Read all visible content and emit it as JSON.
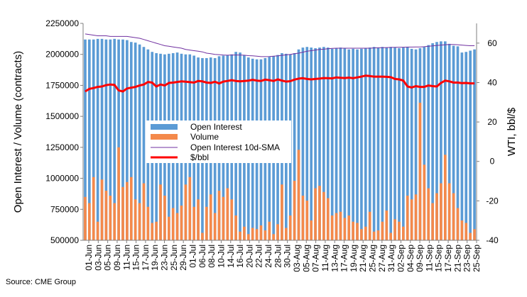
{
  "chart_data": {
    "type": "bar",
    "ylabel": "Open Interest / Volume (contracts)",
    "y2label": "WTI, bbl/$",
    "ylim": [
      500000,
      2250000
    ],
    "y2lim": [
      -40,
      70
    ],
    "y_ticks": [
      "2250000",
      "2000000",
      "1750000",
      "1500000",
      "1250000",
      "1000000",
      "750000",
      "500000"
    ],
    "y2_ticks": [
      "60",
      "40",
      "20",
      "0",
      "-20",
      "-40"
    ],
    "x_tick_labels": [
      "01-Jun",
      "03-Jun",
      "05-Jun",
      "09-Jun",
      "11-Jun",
      "15-Jun",
      "17-Jun",
      "19-Jun",
      "23-Jun",
      "25-Jun",
      "29-Jun",
      "01-Jul",
      "06-Jul",
      "08-Jul",
      "10-Jul",
      "14-Jul",
      "16-Jul",
      "20-Jul",
      "22-Jul",
      "24-Jul",
      "28-Jul",
      "30-Jul",
      "03-Aug",
      "05-Aug",
      "07-Aug",
      "11-Aug",
      "13-Aug",
      "17-Aug",
      "19-Aug",
      "21-Aug",
      "25-Aug",
      "27-Aug",
      "31-Aug",
      "02-Sep",
      "04-Sep",
      "09-Sep",
      "11-Sep",
      "15-Sep",
      "17-Sep",
      "21-Sep",
      "23-Sep",
      "25-Sep"
    ],
    "legend_position": "center",
    "source": "Source: CME Group",
    "series": [
      {
        "name": "Open Interest",
        "type": "bar",
        "axis": "left",
        "color": "#5b9bd5",
        "values": [
          2120000,
          2120000,
          2120000,
          2125000,
          2125000,
          2120000,
          2120000,
          2125000,
          2120000,
          2120000,
          2115000,
          2100000,
          2095000,
          2080000,
          2060000,
          2040000,
          2020000,
          2010000,
          2005000,
          2000000,
          2005000,
          2010000,
          2015000,
          2005000,
          2000000,
          2000000,
          1990000,
          1975000,
          1970000,
          1970000,
          1975000,
          1970000,
          1985000,
          1990000,
          1995000,
          2000000,
          2020000,
          2015000,
          1995000,
          1975000,
          1965000,
          1960000,
          1960000,
          1970000,
          1980000,
          1985000,
          1995000,
          2010000,
          2005000,
          2000000,
          2010000,
          2040000,
          2055000,
          2060000,
          2055000,
          2050000,
          2055000,
          2060000,
          2055000,
          2045000,
          2050000,
          2055000,
          2050000,
          2040000,
          2045000,
          2040000,
          2045000,
          2050000,
          2055000,
          2060000,
          2055000,
          2060000,
          2055000,
          2060000,
          2055000,
          2050000,
          2055000,
          2060000,
          2045000,
          2040000,
          2050000,
          2060000,
          2075000,
          2090000,
          2100000,
          2105000,
          2105000,
          2085000,
          2070000,
          2065000,
          2015000,
          2020000,
          2030000,
          2040000
        ]
      },
      {
        "name": "Volume",
        "type": "bar",
        "axis": "left",
        "color": "#f4894b",
        "values": [
          850000,
          800000,
          1010000,
          650000,
          990000,
          900000,
          860000,
          800000,
          1250000,
          930000,
          970000,
          1010000,
          830000,
          800000,
          960000,
          770000,
          640000,
          650000,
          950000,
          860000,
          690000,
          760000,
          720000,
          780000,
          950000,
          1010000,
          770000,
          830000,
          560000,
          770000,
          870000,
          720000,
          900000,
          850000,
          920000,
          830000,
          700000,
          570000,
          610000,
          550000,
          600000,
          590000,
          620000,
          580000,
          650000,
          550000,
          630000,
          950000,
          600000,
          700000,
          980000,
          1230000,
          860000,
          820000,
          660000,
          920000,
          940000,
          890000,
          840000,
          700000,
          720000,
          730000,
          680000,
          700000,
          650000,
          640000,
          590000,
          610000,
          730000,
          570000,
          580000,
          650000,
          740000,
          560000,
          670000,
          650000,
          610000,
          860000,
          830000,
          870000,
          1610000,
          1110000,
          920000,
          800000,
          880000,
          960000,
          1190000,
          960000,
          880000,
          760000,
          660000,
          640000,
          560000,
          590000
        ]
      },
      {
        "name": "Open Interest 10d-SMA",
        "type": "line",
        "axis": "left",
        "color": "#7030a0",
        "values": [
          2165000,
          2160000,
          2155000,
          2150000,
          2150000,
          2150000,
          2145000,
          2145000,
          2145000,
          2145000,
          2145000,
          2140000,
          2135000,
          2130000,
          2120000,
          2110000,
          2100000,
          2090000,
          2080000,
          2070000,
          2065000,
          2060000,
          2055000,
          2050000,
          2040000,
          2035000,
          2030000,
          2025000,
          2020000,
          2010000,
          2005000,
          2000000,
          1998000,
          1995000,
          1993000,
          1995000,
          1995000,
          1995000,
          1993000,
          1990000,
          1988000,
          1985000,
          1982000,
          1982000,
          1983000,
          1985000,
          1988000,
          1992000,
          1996000,
          2000000,
          2005000,
          2010000,
          2018000,
          2025000,
          2030000,
          2035000,
          2040000,
          2042000,
          2045000,
          2048000,
          2050000,
          2050000,
          2050000,
          2050000,
          2050000,
          2050000,
          2050000,
          2050000,
          2050000,
          2052000,
          2053000,
          2054000,
          2055000,
          2056000,
          2057000,
          2058000,
          2058000,
          2059000,
          2059000,
          2060000,
          2060000,
          2062000,
          2065000,
          2068000,
          2072000,
          2075000,
          2078000,
          2080000,
          2080000,
          2078000,
          2075000,
          2072000,
          2070000,
          2070000
        ]
      },
      {
        "name": "$/bbl",
        "type": "line",
        "axis": "right",
        "color": "#ff0000",
        "values": [
          35.5,
          36.8,
          37.2,
          37.8,
          38.0,
          38.7,
          39.0,
          38.8,
          36.0,
          35.5,
          37.0,
          37.4,
          37.8,
          38.5,
          39.0,
          40.3,
          40.0,
          38.0,
          39.0,
          38.5,
          39.8,
          40.0,
          40.3,
          40.6,
          40.4,
          40.2,
          40.0,
          40.8,
          40.6,
          40.0,
          39.8,
          40.4,
          39.5,
          40.5,
          40.8,
          41.2,
          40.8,
          40.6,
          40.8,
          41.0,
          41.4,
          41.0,
          40.8,
          41.5,
          41.2,
          40.8,
          41.6,
          41.0,
          40.5,
          40.7,
          41.5,
          42.0,
          42.2,
          41.8,
          41.6,
          41.8,
          42.0,
          42.3,
          42.2,
          42.1,
          42.6,
          42.4,
          42.3,
          42.5,
          42.2,
          42.6,
          43.0,
          43.5,
          43.3,
          43.0,
          43.0,
          43.0,
          42.9,
          42.7,
          41.8,
          41.6,
          41.0,
          38.0,
          37.5,
          38.2,
          37.8,
          37.8,
          38.5,
          38.2,
          38.0,
          39.8,
          41.0,
          40.6,
          40.0,
          40.0,
          39.7,
          39.8,
          39.6,
          39.6
        ]
      }
    ]
  }
}
